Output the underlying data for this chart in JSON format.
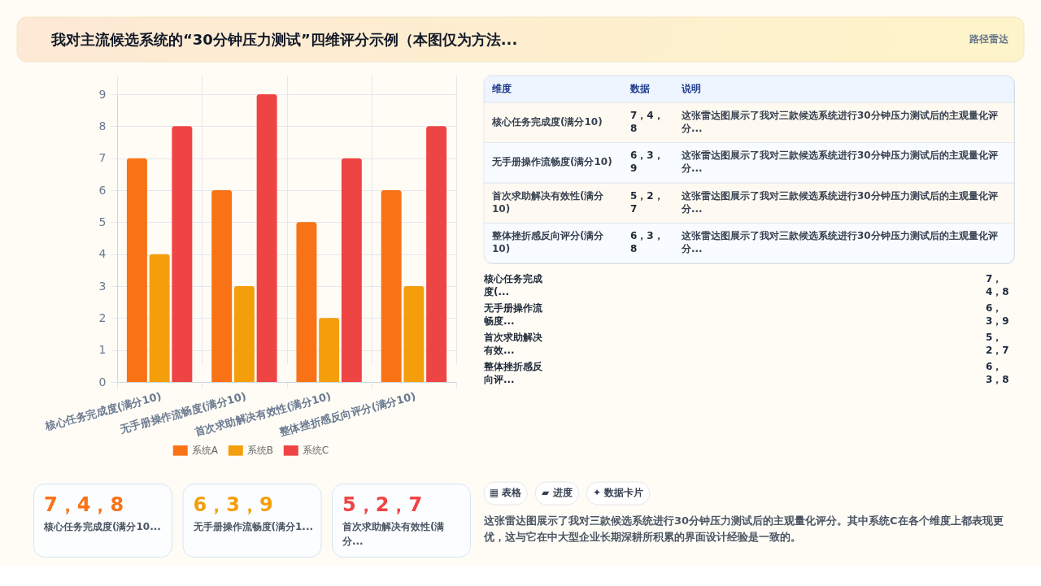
{
  "chart_data": [
    {
      "type": "bar",
      "title": "我对主流候选系统的“30分钟压力测试”四维评分示例（本图仅为方法...",
      "annotations": [
        "路径雷达"
      ],
      "categories": [
        "核心任务完成度(满分10)",
        "无手册操作流畅度(满分10)",
        "首次求助解决有效性(满分10)",
        "整体挫折感反向评分(满分10)"
      ],
      "series": [
        {
          "name": "系统A",
          "color": "#f97316",
          "values": [
            7,
            6,
            5,
            6
          ]
        },
        {
          "name": "系统B",
          "color": "#f59e0b",
          "values": [
            4,
            3,
            2,
            3
          ]
        },
        {
          "name": "系统C",
          "color": "#ef4444",
          "values": [
            8,
            9,
            7,
            8
          ]
        }
      ],
      "ylim": [
        0,
        9
      ],
      "yticks": [
        0,
        1,
        2,
        3,
        4,
        5,
        6,
        7,
        8,
        9
      ],
      "grid": true,
      "legend": "bottom"
    },
    {
      "type": "other",
      "annotations": [
        "维度",
        "数据",
        "说明",
        "核心任务完成度(满分10)",
        "7，4，8",
        "这张雷达图展示了我对三款候选系统进行30分钟压力测试后的主观量化评分...",
        "无手册操作流畅度(满分10)",
        "6，3，9",
        "这张雷达图展示了我对三款候选系统进行30分钟压力测试后的主观量化评分...",
        "首次求助解决有效性(满分10)",
        "5，2，7",
        "这张雷达图展示了我对三款候选系统进行30分钟压力测试后的主观量化评分...",
        "整体挫折感反向评分(满分10)",
        "6，3，8",
        "这张雷达图展示了我对三款候选系统进行30分钟压力测试后的主观量化评分..."
      ]
    },
    {
      "type": "other",
      "annotations": [
        "核心任务完成度(...",
        "7，4，8",
        "无手册操作流畅度...",
        "6，3，9",
        "首次求助解决有效...",
        "5，2，7",
        "整体挫折感反向评...",
        "6，3，8"
      ]
    },
    {
      "type": "other",
      "color": "#f97316",
      "annotations": [
        "7，4，8",
        "核心任务完成度(满分10..."
      ]
    },
    {
      "type": "other",
      "color": "#f59e0b",
      "annotations": [
        "6，3，9",
        "无手册操作流畅度(满分1..."
      ]
    },
    {
      "type": "other",
      "color": "#ef4444",
      "annotations": [
        "5，2，7",
        "首次求助解决有效性(满分..."
      ]
    },
    {
      "type": "other",
      "annotations": [
        "▦ 表格",
        "▰ 进度",
        "✦ 数据卡片"
      ]
    },
    {
      "type": "other",
      "annotations": [
        "这张雷达图展示了我对三款候选系统进行30分钟压力测试后的主观量化评分。其中系统C在各个维度上都表现更优，这与它在中大型企业长期深耕所积累的界面设计经验是一致的。"
      ]
    }
  ]
}
